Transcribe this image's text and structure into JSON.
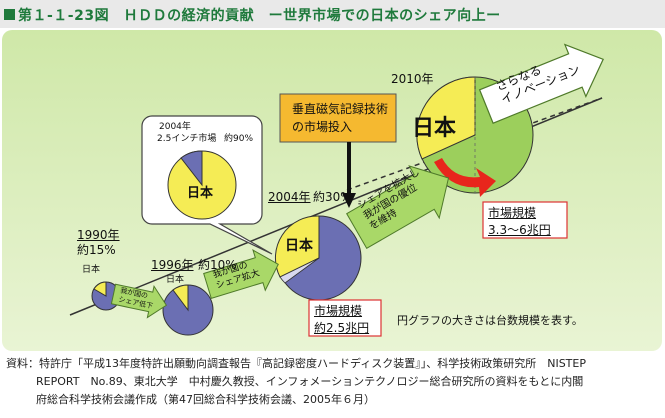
{
  "title": "第１-１-23図　ＨＤＤの経済的貢献　ー世界市場での日本のシェア向上ー",
  "colors": {
    "title_green": "#1f7a3c",
    "panel_green": "#d9eebd",
    "japan_yellow": "#f5ec55",
    "other_purple": "#6b6fb3",
    "future_green": "#9ccf5c",
    "arrow_red": "#e8261c"
  },
  "milestones": {
    "y1990": {
      "label": "1990年",
      "share": "約15%",
      "japan": "日本"
    },
    "y1996": {
      "label": "1996年",
      "share": "約10%",
      "japan": "日本"
    },
    "y2004": {
      "label": "2004年",
      "share": "約30%",
      "japan": "日本"
    },
    "y2010": {
      "label": "2010年",
      "japan": "日本"
    }
  },
  "callout": {
    "year": "2004年",
    "market": "2.5インチ市場",
    "share": "約90%",
    "japan": "日本"
  },
  "tech_box": {
    "line1": "垂直磁気記録技術",
    "line2": "の市場投入"
  },
  "arrows": {
    "a1": {
      "line1": "我が国の",
      "line2": "シェア低下"
    },
    "a2": {
      "line1": "我が国の",
      "line2": "シェア拡大"
    },
    "a3": {
      "line1": "シェアを拡大し",
      "line2": "我が国の優位",
      "line3": "を維持"
    },
    "a4": {
      "line1": "さらなる",
      "line2": "イノベーション"
    }
  },
  "market_2004": {
    "line1": "市場規模",
    "line2": "約2.5兆円"
  },
  "market_2010": {
    "line1": "市場規模",
    "line2": "3.3～6兆円"
  },
  "note": "円グラフの大きさは台数規模を表す。",
  "source": {
    "line1": "資料：特許庁「平成13年度特許出願動向調査報告『高記録密度ハードディスク装置』」、科学技術政策研究所　NISTEP",
    "line2": "REPORT　No.89、東北大学　中村慶久教授、インフォメーションテクノロジー総合研究所の資料をもとに内閣",
    "line3": "府総合科学技術会議作成（第47回総合科学技術会議、2005年６月）"
  }
}
